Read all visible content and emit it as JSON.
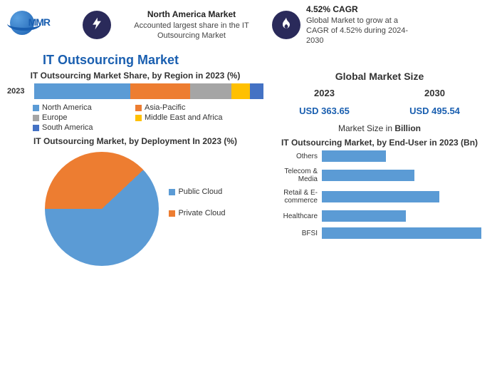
{
  "logo": {
    "text": "MMR"
  },
  "header": {
    "block1": {
      "title": "North America Market",
      "line1": "Accounted largest share in the IT",
      "line2": "Outsourcing Market"
    },
    "block2": {
      "title": "4.52% CAGR",
      "line1": "Global Market to grow at a",
      "line2": "CAGR of 4.52% during 2024-",
      "line3": "2030"
    }
  },
  "main_title": "IT Outsourcing Market",
  "region_chart": {
    "title": "IT Outsourcing Market Share, by Region in 2023 (%)",
    "row_label": "2023",
    "segments": [
      {
        "label": "North America",
        "value": 42,
        "color": "#5b9bd5"
      },
      {
        "label": "Asia-Pacific",
        "value": 26,
        "color": "#ed7d31"
      },
      {
        "label": "Europe",
        "value": 18,
        "color": "#a5a5a5"
      },
      {
        "label": "Middle East and Africa",
        "value": 8,
        "color": "#ffc000"
      },
      {
        "label": "South America",
        "value": 6,
        "color": "#4472c4"
      }
    ]
  },
  "gms": {
    "title": "Global Market Size",
    "year1": "2023",
    "year2": "2030",
    "val1": "USD 363.65",
    "val2": "USD 495.54",
    "note_prefix": "Market Size in ",
    "note_bold": "Billion"
  },
  "deployment_chart": {
    "title": "IT Outsourcing Market, by Deployment In 2023 (%)",
    "slices": [
      {
        "label": "Public Cloud",
        "value": 62,
        "color": "#5b9bd5"
      },
      {
        "label": "Private Cloud",
        "value": 38,
        "color": "#ed7d31"
      }
    ]
  },
  "enduser_chart": {
    "title": "IT Outsourcing Market, by End-User in 2023 (Bn)",
    "bar_color": "#5b9bd5",
    "max": 100,
    "bars": [
      {
        "label": "Others",
        "value": 38
      },
      {
        "label": "Telecom & Media",
        "value": 55
      },
      {
        "label": "Retail & E-commerce",
        "value": 70
      },
      {
        "label": "Healthcare",
        "value": 50
      },
      {
        "label": "BFSI",
        "value": 95
      }
    ]
  }
}
